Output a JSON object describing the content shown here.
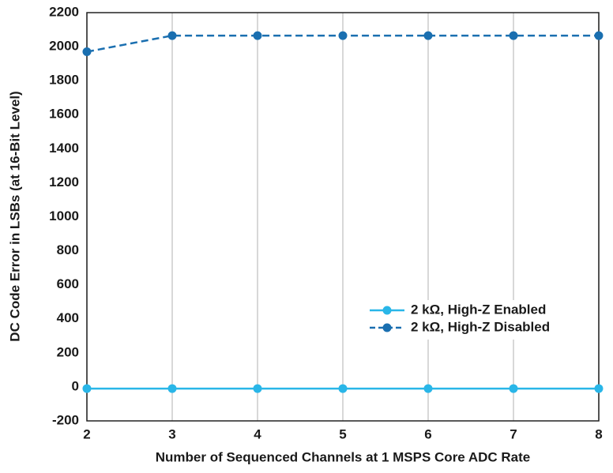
{
  "chart_data": {
    "type": "line",
    "x_label": "Number of Sequenced Channels at 1 MSPS Core ADC Rate",
    "y_label": "DC Code Error in LSBs (at 16-Bit Level)",
    "x": [
      2,
      3,
      4,
      5,
      6,
      7,
      8
    ],
    "series": [
      {
        "name": "2 kΩ, High-Z Enabled",
        "color": "#29b6e8",
        "dashed": false,
        "values": [
          -10,
          -10,
          -10,
          -10,
          -10,
          -10,
          -10
        ]
      },
      {
        "name": "2 kΩ, High-Z Disabled",
        "color": "#1a6fb0",
        "dashed": true,
        "values": [
          1970,
          2065,
          2065,
          2065,
          2065,
          2065,
          2065
        ]
      }
    ],
    "xlim": [
      2,
      8
    ],
    "xticks": [
      2,
      3,
      4,
      5,
      6,
      7,
      8
    ],
    "ylim": [
      -200,
      2200
    ],
    "yticks": [
      -200,
      0,
      200,
      400,
      600,
      800,
      1000,
      1200,
      1400,
      1600,
      1800,
      2000,
      2200
    ],
    "grid": "x",
    "legend": "lower-right"
  }
}
